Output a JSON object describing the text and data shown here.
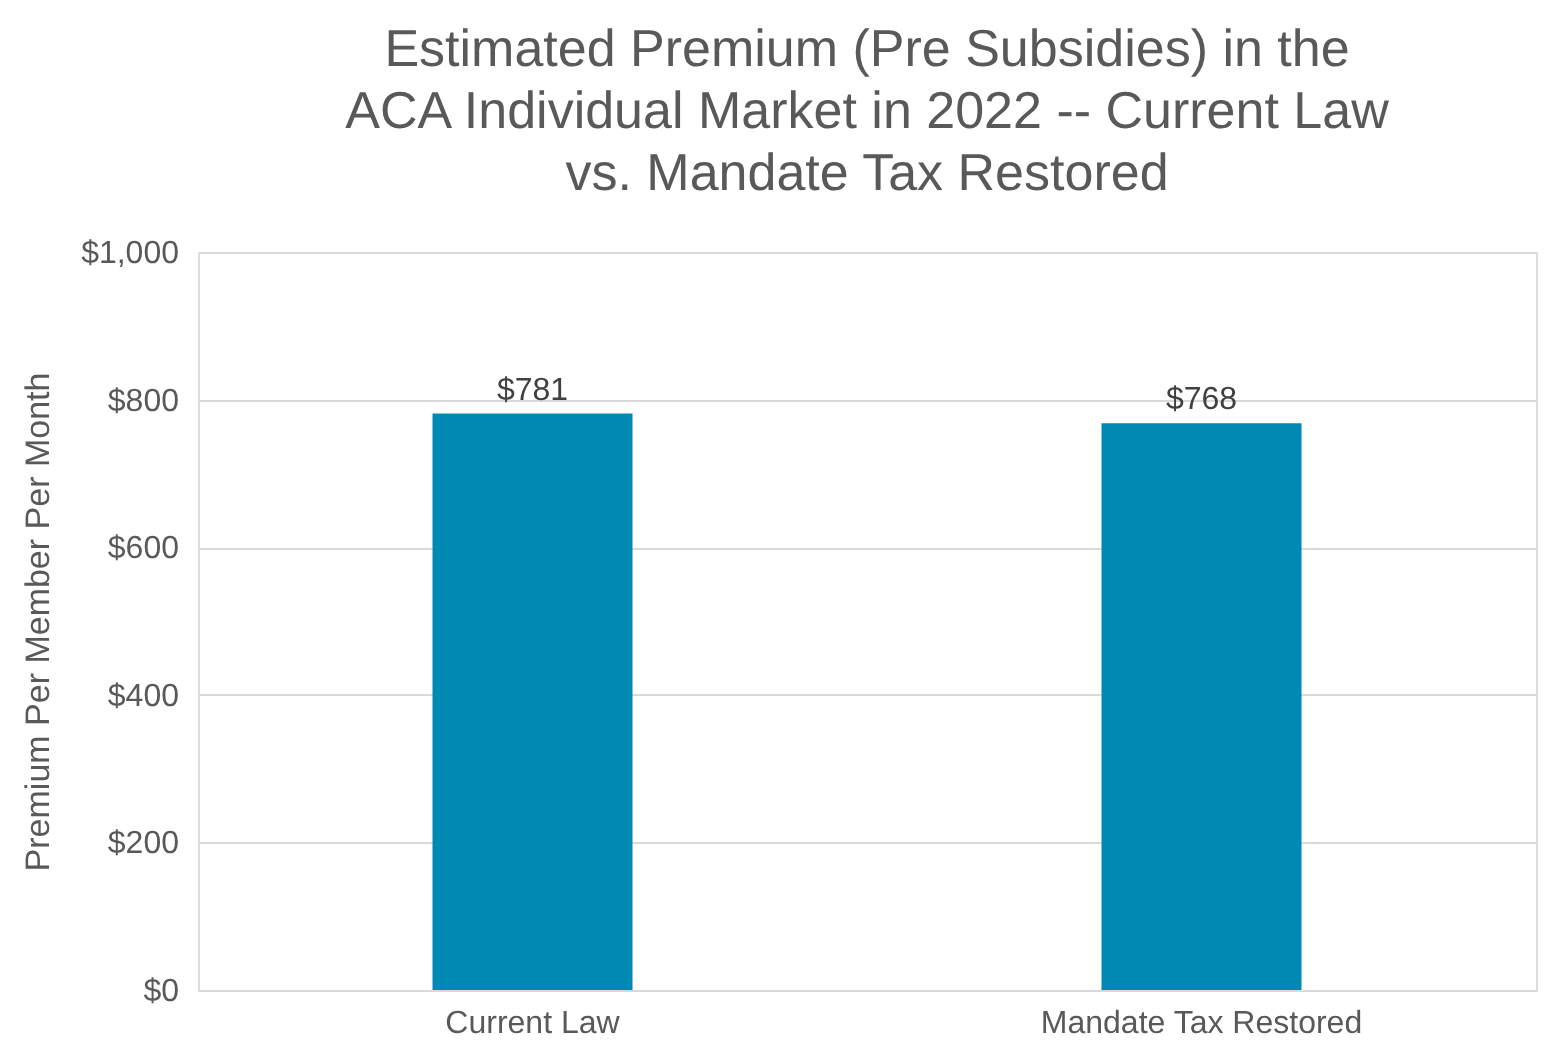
{
  "chart_data": {
    "type": "bar",
    "title": [
      "Estimated Premium (Pre Subsidies) in the",
      "ACA Individual Market in 2022 -- Current Law",
      "vs. Mandate Tax Restored"
    ],
    "ylabel": "Premium Per Member Per Month",
    "categories": [
      "Current Law",
      "Mandate Tax Restored"
    ],
    "values": [
      781,
      768
    ],
    "value_labels": [
      "$781",
      "$768"
    ],
    "color": "#008ab3",
    "ylim": [
      0,
      1000
    ],
    "yticks": [
      {
        "value": 0,
        "label": "$0"
      },
      {
        "value": 200,
        "label": "$200"
      },
      {
        "value": 400,
        "label": "$400"
      },
      {
        "value": 600,
        "label": "$600"
      },
      {
        "value": 800,
        "label": "$800"
      },
      {
        "value": 1000,
        "label": "$1,000"
      }
    ],
    "grid": "y"
  }
}
